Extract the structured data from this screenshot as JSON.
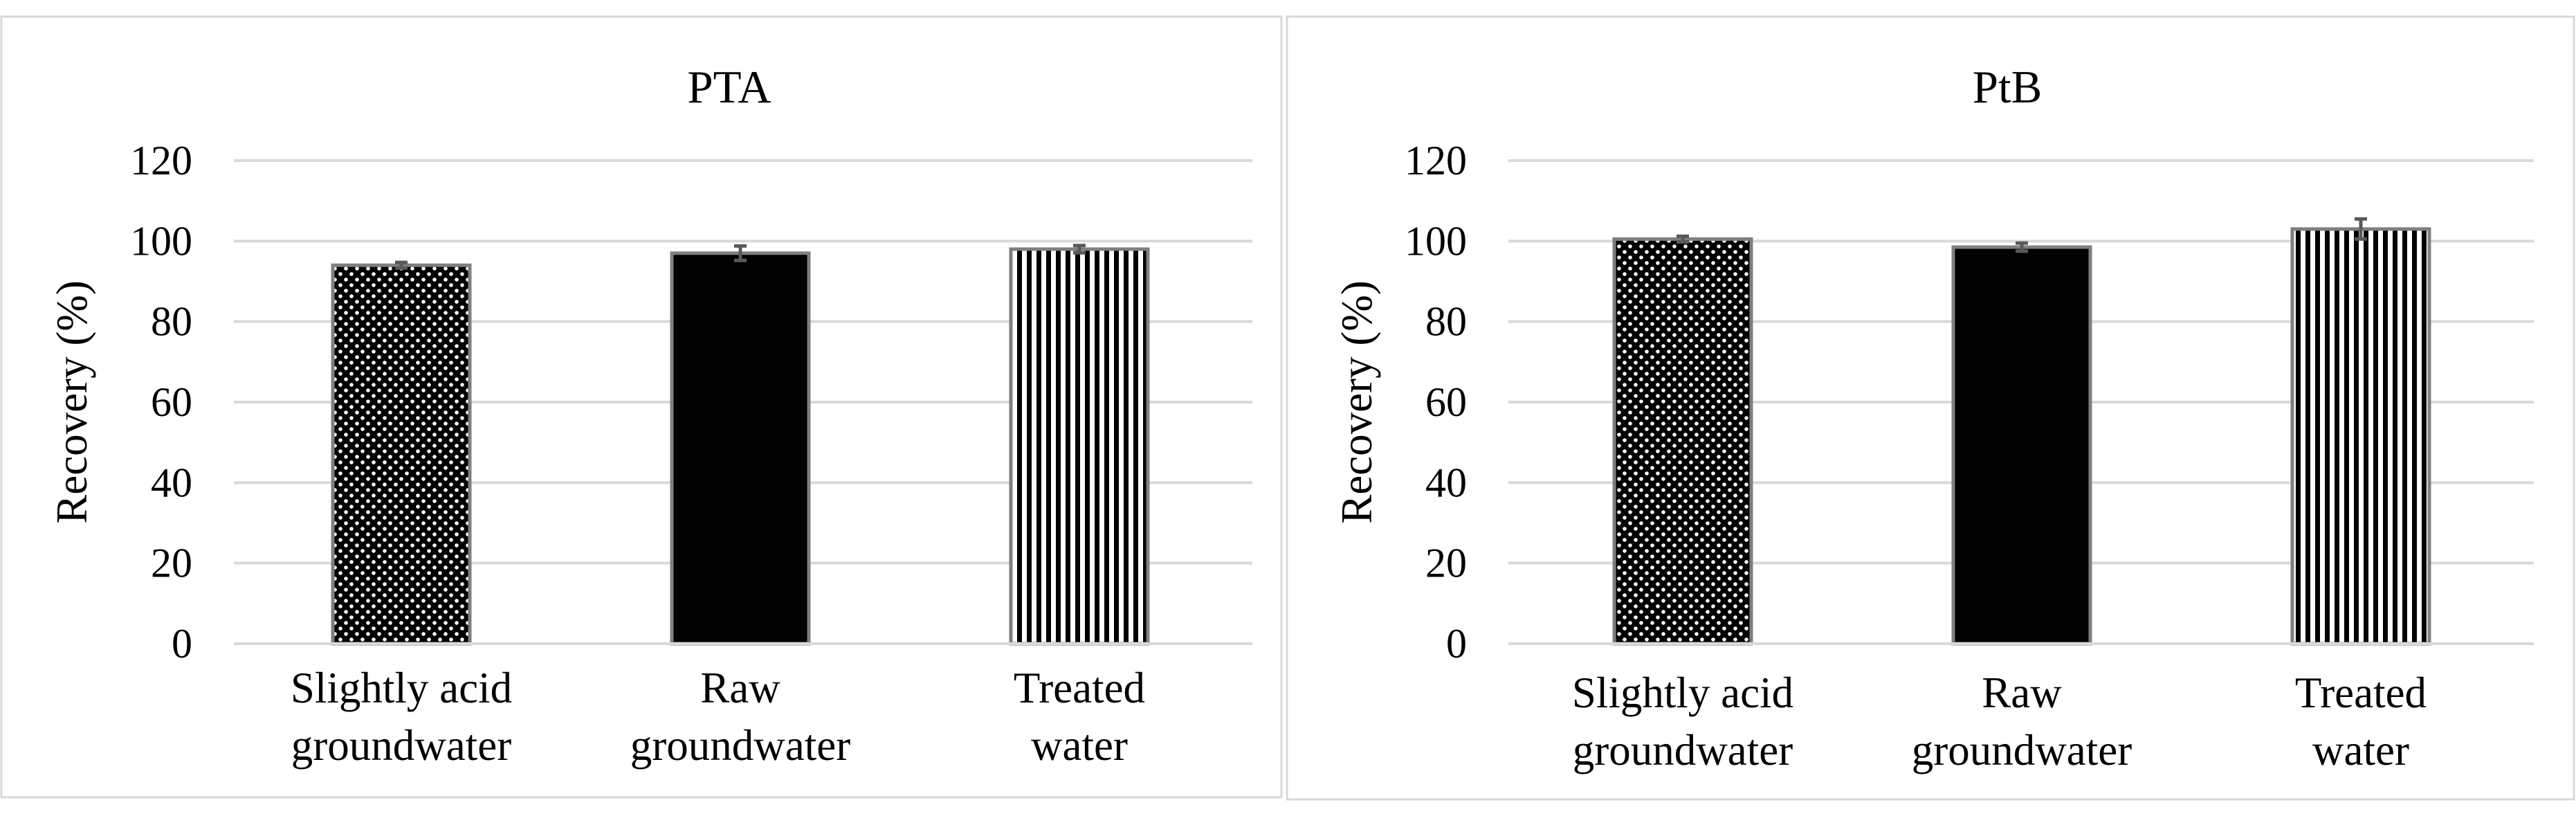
{
  "chart_data": [
    {
      "type": "bar",
      "title": "PTA",
      "xlabel": "",
      "ylabel": "Recovery (%)",
      "ylim": [
        0,
        120
      ],
      "yticks": [
        0,
        20,
        40,
        60,
        80,
        100,
        120
      ],
      "grid": true,
      "categories": [
        [
          "Slightly acid",
          "groundwater"
        ],
        [
          "Raw",
          "groundwater"
        ],
        [
          "Treated",
          "water"
        ]
      ],
      "values": [
        94,
        97,
        98
      ],
      "errors": [
        0.7,
        1.8,
        0.9
      ],
      "patterns": [
        "dots",
        "solid",
        "vertical-stripes"
      ]
    },
    {
      "type": "bar",
      "title": "PtB",
      "xlabel": "",
      "ylabel": "Recovery (%)",
      "ylim": [
        0,
        120
      ],
      "yticks": [
        0,
        20,
        40,
        60,
        80,
        100,
        120
      ],
      "grid": true,
      "categories": [
        [
          "Slightly acid",
          "groundwater"
        ],
        [
          "Raw",
          "groundwater"
        ],
        [
          "Treated",
          "water"
        ]
      ],
      "values": [
        100.5,
        98.5,
        103
      ],
      "errors": [
        0.7,
        1.0,
        2.5
      ],
      "patterns": [
        "dots",
        "solid",
        "vertical-stripes"
      ]
    }
  ]
}
